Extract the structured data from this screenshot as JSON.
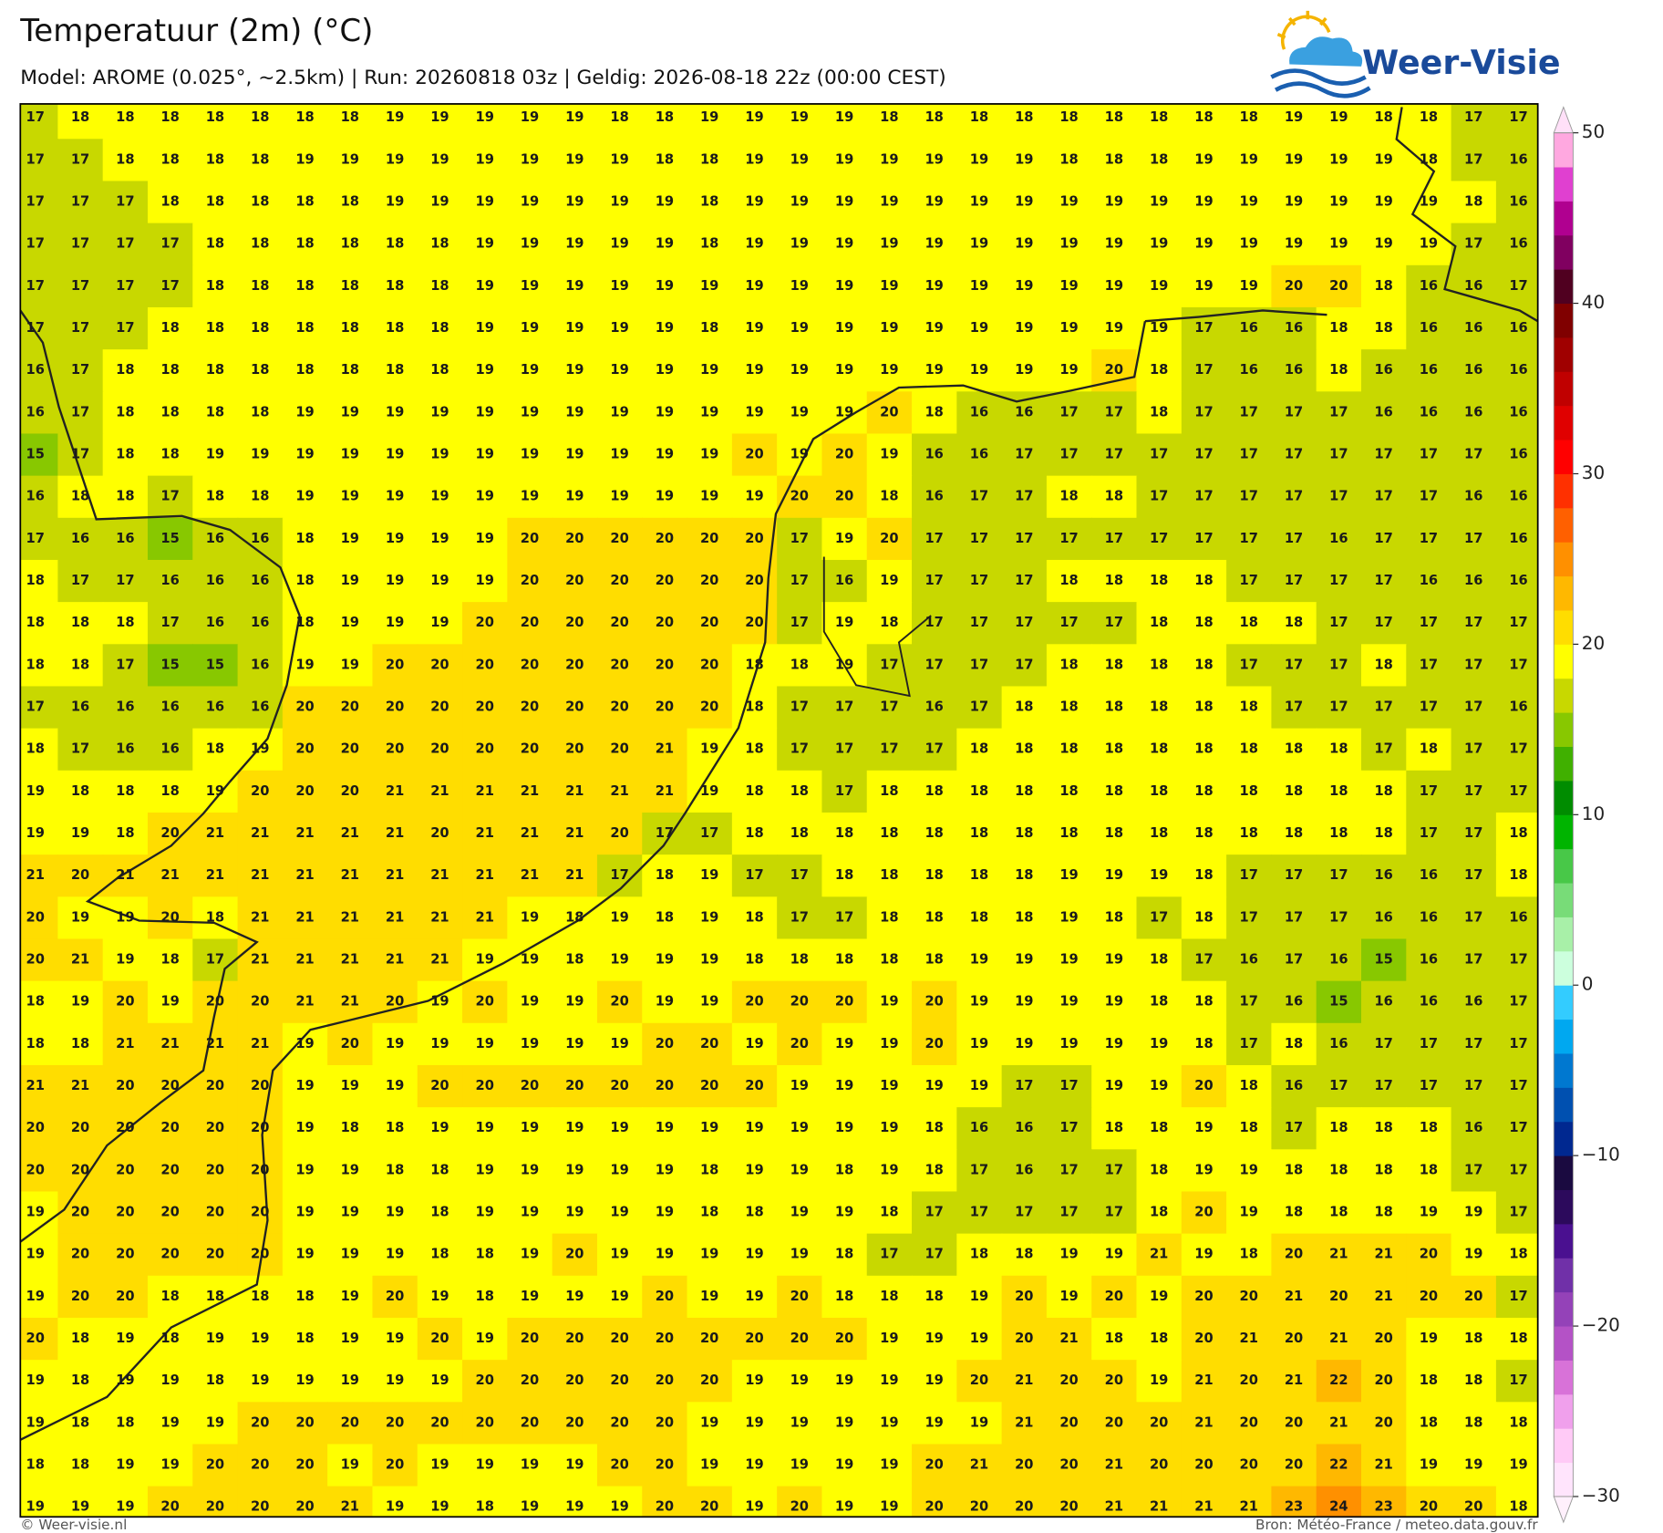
{
  "header": {
    "title": "Temperatuur (2m) (°C)",
    "subtitle": "Model: AROME (0.025°, ~2.5km)  |  Run: 20260818 03z  |  Geldig: 2026-08-18 22z (00:00 CEST)"
  },
  "logo": {
    "text": "Weer-Visie"
  },
  "map": {
    "values": [
      [
        17,
        18,
        18,
        18,
        18,
        18,
        18,
        18,
        19,
        19,
        19,
        19,
        19,
        18,
        18,
        19,
        19,
        19,
        19,
        18,
        18,
        18,
        18,
        18,
        18,
        18,
        18,
        18,
        19,
        19,
        18,
        18,
        17,
        17
      ],
      [
        17,
        17,
        18,
        18,
        18,
        18,
        19,
        19,
        19,
        19,
        19,
        19,
        19,
        19,
        18,
        18,
        19,
        19,
        19,
        19,
        19,
        19,
        19,
        18,
        18,
        18,
        19,
        19,
        19,
        19,
        19,
        18,
        17,
        16
      ],
      [
        17,
        17,
        17,
        18,
        18,
        18,
        18,
        18,
        19,
        19,
        19,
        19,
        19,
        19,
        19,
        18,
        19,
        19,
        19,
        19,
        19,
        19,
        19,
        19,
        19,
        19,
        19,
        19,
        19,
        19,
        19,
        19,
        18,
        16
      ],
      [
        17,
        17,
        17,
        17,
        18,
        18,
        18,
        18,
        18,
        18,
        19,
        19,
        19,
        19,
        19,
        18,
        19,
        19,
        19,
        19,
        19,
        19,
        19,
        19,
        19,
        19,
        19,
        19,
        19,
        19,
        19,
        19,
        17,
        16
      ],
      [
        17,
        17,
        17,
        17,
        18,
        18,
        18,
        18,
        18,
        18,
        19,
        19,
        19,
        19,
        19,
        19,
        19,
        19,
        19,
        19,
        19,
        19,
        19,
        19,
        19,
        19,
        19,
        19,
        20,
        20,
        18,
        16,
        16,
        17
      ],
      [
        17,
        17,
        17,
        18,
        18,
        18,
        18,
        18,
        18,
        18,
        19,
        19,
        19,
        19,
        19,
        18,
        19,
        19,
        19,
        19,
        19,
        19,
        19,
        19,
        19,
        19,
        17,
        16,
        16,
        18,
        18,
        16,
        16,
        16
      ],
      [
        16,
        17,
        18,
        18,
        18,
        18,
        18,
        18,
        18,
        18,
        19,
        19,
        19,
        19,
        19,
        19,
        19,
        19,
        19,
        19,
        19,
        19,
        19,
        19,
        20,
        18,
        17,
        16,
        16,
        18,
        16,
        16,
        16,
        16
      ],
      [
        16,
        17,
        18,
        18,
        18,
        18,
        19,
        19,
        19,
        19,
        19,
        19,
        19,
        19,
        19,
        19,
        19,
        19,
        19,
        20,
        18,
        16,
        16,
        17,
        17,
        18,
        17,
        17,
        17,
        17,
        16,
        16,
        16,
        16
      ],
      [
        15,
        17,
        18,
        18,
        19,
        19,
        19,
        19,
        19,
        19,
        19,
        19,
        19,
        19,
        19,
        19,
        20,
        19,
        20,
        19,
        16,
        16,
        17,
        17,
        17,
        17,
        17,
        17,
        17,
        17,
        17,
        17,
        17,
        16
      ],
      [
        16,
        18,
        18,
        17,
        18,
        18,
        19,
        19,
        19,
        19,
        19,
        19,
        19,
        19,
        19,
        19,
        19,
        20,
        20,
        18,
        16,
        17,
        17,
        18,
        18,
        17,
        17,
        17,
        17,
        17,
        17,
        17,
        16,
        16
      ],
      [
        17,
        16,
        16,
        15,
        16,
        16,
        18,
        19,
        19,
        19,
        19,
        20,
        20,
        20,
        20,
        20,
        20,
        17,
        19,
        20,
        17,
        17,
        17,
        17,
        17,
        17,
        17,
        17,
        17,
        16,
        17,
        17,
        17,
        16
      ],
      [
        18,
        17,
        17,
        16,
        16,
        16,
        18,
        19,
        19,
        19,
        19,
        20,
        20,
        20,
        20,
        20,
        20,
        17,
        16,
        19,
        17,
        17,
        17,
        18,
        18,
        18,
        18,
        17,
        17,
        17,
        17,
        16,
        16,
        16
      ],
      [
        18,
        18,
        18,
        17,
        16,
        16,
        18,
        19,
        19,
        19,
        20,
        20,
        20,
        20,
        20,
        20,
        20,
        17,
        19,
        18,
        17,
        17,
        17,
        17,
        17,
        18,
        18,
        18,
        18,
        17,
        17,
        17,
        17,
        17
      ],
      [
        18,
        18,
        17,
        15,
        15,
        16,
        19,
        19,
        20,
        20,
        20,
        20,
        20,
        20,
        20,
        20,
        18,
        18,
        19,
        17,
        17,
        17,
        17,
        18,
        18,
        18,
        18,
        17,
        17,
        17,
        18,
        17,
        17,
        17
      ],
      [
        17,
        16,
        16,
        16,
        16,
        16,
        20,
        20,
        20,
        20,
        20,
        20,
        20,
        20,
        20,
        20,
        18,
        17,
        17,
        17,
        16,
        17,
        18,
        18,
        18,
        18,
        18,
        18,
        17,
        17,
        17,
        17,
        17,
        16
      ],
      [
        18,
        17,
        16,
        16,
        18,
        19,
        20,
        20,
        20,
        20,
        20,
        20,
        20,
        20,
        21,
        19,
        18,
        17,
        17,
        17,
        17,
        18,
        18,
        18,
        18,
        18,
        18,
        18,
        18,
        18,
        17,
        18,
        17,
        17
      ],
      [
        19,
        18,
        18,
        18,
        19,
        20,
        20,
        20,
        21,
        21,
        21,
        21,
        21,
        21,
        21,
        19,
        18,
        18,
        17,
        18,
        18,
        18,
        18,
        18,
        18,
        18,
        18,
        18,
        18,
        18,
        18,
        17,
        17,
        17
      ],
      [
        19,
        19,
        18,
        20,
        21,
        21,
        21,
        21,
        21,
        20,
        21,
        21,
        21,
        20,
        17,
        17,
        18,
        18,
        18,
        18,
        18,
        18,
        18,
        18,
        18,
        18,
        18,
        18,
        18,
        18,
        18,
        17,
        17,
        18
      ],
      [
        21,
        20,
        21,
        21,
        21,
        21,
        21,
        21,
        21,
        21,
        21,
        21,
        21,
        17,
        18,
        19,
        17,
        17,
        18,
        18,
        18,
        18,
        18,
        19,
        19,
        19,
        18,
        17,
        17,
        17,
        16,
        16,
        17,
        18
      ],
      [
        20,
        19,
        19,
        20,
        18,
        21,
        21,
        21,
        21,
        21,
        21,
        19,
        18,
        19,
        18,
        19,
        18,
        17,
        17,
        18,
        18,
        18,
        18,
        19,
        18,
        17,
        18,
        17,
        17,
        17,
        16,
        16,
        17,
        16
      ],
      [
        20,
        21,
        19,
        18,
        17,
        21,
        21,
        21,
        21,
        21,
        19,
        19,
        18,
        19,
        19,
        19,
        18,
        18,
        18,
        18,
        18,
        19,
        19,
        19,
        19,
        18,
        17,
        16,
        17,
        16,
        15,
        16,
        17,
        17
      ],
      [
        18,
        19,
        20,
        19,
        20,
        20,
        21,
        21,
        20,
        19,
        20,
        19,
        19,
        20,
        19,
        19,
        20,
        20,
        20,
        19,
        20,
        19,
        19,
        19,
        19,
        18,
        18,
        17,
        16,
        15,
        16,
        16,
        16,
        17
      ],
      [
        18,
        18,
        21,
        21,
        21,
        21,
        19,
        20,
        19,
        19,
        19,
        19,
        19,
        19,
        20,
        20,
        19,
        20,
        19,
        19,
        20,
        19,
        19,
        19,
        19,
        19,
        18,
        17,
        18,
        16,
        17,
        17,
        17,
        17
      ],
      [
        21,
        21,
        20,
        20,
        20,
        20,
        19,
        19,
        19,
        20,
        20,
        20,
        20,
        20,
        20,
        20,
        20,
        19,
        19,
        19,
        19,
        19,
        17,
        17,
        19,
        19,
        20,
        18,
        16,
        17,
        17,
        17,
        17,
        17
      ],
      [
        20,
        20,
        20,
        20,
        20,
        20,
        19,
        18,
        18,
        19,
        19,
        19,
        19,
        19,
        19,
        19,
        19,
        19,
        19,
        19,
        18,
        16,
        16,
        17,
        18,
        18,
        19,
        18,
        17,
        18,
        18,
        18,
        16,
        17
      ],
      [
        20,
        20,
        20,
        20,
        20,
        20,
        19,
        19,
        18,
        18,
        19,
        19,
        19,
        19,
        19,
        18,
        19,
        19,
        18,
        19,
        18,
        17,
        16,
        17,
        17,
        18,
        19,
        19,
        18,
        18,
        18,
        18,
        17,
        17
      ],
      [
        19,
        20,
        20,
        20,
        20,
        20,
        19,
        19,
        19,
        18,
        19,
        19,
        19,
        19,
        19,
        18,
        18,
        19,
        19,
        18,
        17,
        17,
        17,
        17,
        17,
        18,
        20,
        19,
        18,
        18,
        18,
        19,
        19,
        17
      ],
      [
        19,
        20,
        20,
        20,
        20,
        20,
        19,
        19,
        19,
        18,
        18,
        19,
        20,
        19,
        19,
        19,
        19,
        19,
        18,
        17,
        17,
        18,
        18,
        19,
        19,
        21,
        19,
        18,
        20,
        21,
        21,
        20,
        19,
        18
      ],
      [
        19,
        20,
        20,
        18,
        18,
        18,
        18,
        19,
        20,
        19,
        18,
        19,
        19,
        19,
        20,
        19,
        19,
        20,
        18,
        18,
        18,
        19,
        20,
        19,
        20,
        19,
        20,
        20,
        21,
        20,
        21,
        20,
        20,
        17
      ],
      [
        20,
        18,
        19,
        18,
        19,
        19,
        18,
        19,
        19,
        20,
        19,
        20,
        20,
        20,
        20,
        20,
        20,
        20,
        20,
        19,
        19,
        19,
        20,
        21,
        18,
        18,
        20,
        21,
        20,
        21,
        20,
        19,
        18,
        18
      ],
      [
        19,
        18,
        19,
        19,
        18,
        19,
        19,
        19,
        19,
        19,
        20,
        20,
        20,
        20,
        20,
        20,
        19,
        19,
        19,
        19,
        19,
        20,
        21,
        20,
        20,
        19,
        21,
        20,
        21,
        22,
        20,
        18,
        18,
        17
      ],
      [
        19,
        18,
        18,
        19,
        19,
        20,
        20,
        20,
        20,
        20,
        20,
        20,
        20,
        20,
        20,
        19,
        19,
        19,
        19,
        19,
        19,
        19,
        21,
        20,
        20,
        20,
        21,
        20,
        20,
        21,
        20,
        18,
        18,
        18
      ],
      [
        18,
        18,
        19,
        19,
        20,
        20,
        20,
        19,
        20,
        19,
        19,
        19,
        19,
        20,
        20,
        19,
        19,
        19,
        19,
        19,
        20,
        21,
        20,
        20,
        21,
        20,
        20,
        20,
        20,
        22,
        21,
        19,
        19,
        19
      ],
      [
        19,
        19,
        19,
        20,
        20,
        20,
        20,
        21,
        19,
        19,
        18,
        19,
        19,
        19,
        20,
        20,
        19,
        20,
        19,
        19,
        20,
        20,
        20,
        20,
        21,
        21,
        21,
        21,
        23,
        24,
        23,
        20,
        20,
        18
      ]
    ]
  },
  "colorbar": {
    "range": [
      -30,
      50
    ],
    "ticks": [
      50,
      40,
      30,
      20,
      10,
      0,
      {
        "value": -10,
        "label": "−10"
      },
      {
        "value": -20,
        "label": "−20"
      },
      {
        "value": -30,
        "label": "−30"
      }
    ],
    "colors": [
      "#ffe4fc",
      "#ffcaf6",
      "#f0a0ec",
      "#d872d8",
      "#b452c6",
      "#9442b8",
      "#7030a8",
      "#4a1090",
      "#2c0a5c",
      "#1a0a40",
      "#002890",
      "#0050b0",
      "#0078d0",
      "#00a8f0",
      "#33ccff",
      "#ccffdd",
      "#a8f0a8",
      "#78dc78",
      "#48c848",
      "#00b400",
      "#008c00",
      "#40b000",
      "#88c800",
      "#c8d800",
      "#ffff00",
      "#ffdd00",
      "#ffb800",
      "#ff9000",
      "#ff6000",
      "#ff3000",
      "#ff0000",
      "#e00000",
      "#c00000",
      "#a00000",
      "#800000",
      "#500020",
      "#800060",
      "#b00090",
      "#e040d0",
      "#ffa8e0"
    ],
    "over": "#ffe0f8",
    "under": "#fff0fc"
  },
  "footer": {
    "left": "© Weer-visie.nl",
    "right": "Bron: Météo-France / meteo.data.gouv.fr"
  }
}
